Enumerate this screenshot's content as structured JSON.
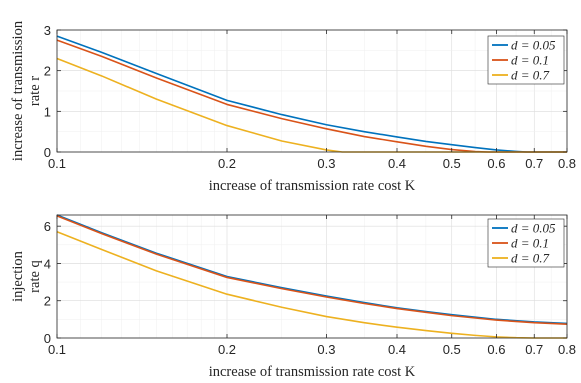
{
  "chart_data": [
    {
      "type": "line",
      "xlabel": "increase of transmission rate cost K",
      "ylabel_lines": [
        "increase of transmission",
        "rate r"
      ],
      "xscale": "log",
      "xlim": [
        0.1,
        0.8
      ],
      "ylim": [
        0,
        3
      ],
      "xticks": [
        0.1,
        0.2,
        0.3,
        0.4,
        0.5,
        0.6,
        0.7,
        0.8
      ],
      "xtick_labels": [
        "0.1",
        "0.2",
        "0.3",
        "0.4",
        "0.5",
        "0.6",
        "0.7",
        "0.8"
      ],
      "yticks": [
        0,
        1,
        2,
        3
      ],
      "ytick_labels": [
        "0",
        "1",
        "2",
        "3"
      ],
      "grid": true,
      "legend_position": "top-right",
      "series": [
        {
          "name": "d = 0.05",
          "color": "#0072BD",
          "x": [
            0.1,
            0.12,
            0.15,
            0.2,
            0.25,
            0.3,
            0.35,
            0.4,
            0.45,
            0.5,
            0.55,
            0.6,
            0.65,
            0.68,
            0.7,
            0.8
          ],
          "y": [
            2.85,
            2.45,
            1.93,
            1.27,
            0.92,
            0.67,
            0.5,
            0.37,
            0.26,
            0.18,
            0.11,
            0.05,
            0.015,
            0.0,
            0.0,
            0.0
          ]
        },
        {
          "name": "d = 0.1",
          "color": "#D95319",
          "x": [
            0.1,
            0.12,
            0.15,
            0.2,
            0.25,
            0.3,
            0.35,
            0.4,
            0.45,
            0.5,
            0.55,
            0.58,
            0.6,
            0.8
          ],
          "y": [
            2.75,
            2.35,
            1.82,
            1.17,
            0.82,
            0.57,
            0.38,
            0.25,
            0.14,
            0.06,
            0.01,
            0.0,
            0.0,
            0.0
          ]
        },
        {
          "name": "d = 0.7",
          "color": "#EDB120",
          "x": [
            0.1,
            0.12,
            0.15,
            0.2,
            0.25,
            0.3,
            0.32,
            0.35,
            0.8
          ],
          "y": [
            2.3,
            1.87,
            1.3,
            0.65,
            0.27,
            0.05,
            0.0,
            0.0,
            0.0
          ]
        }
      ]
    },
    {
      "type": "line",
      "xlabel": "increase of transmission rate cost K",
      "ylabel_lines": [
        "injection",
        "rate q"
      ],
      "xscale": "log",
      "xlim": [
        0.1,
        0.8
      ],
      "ylim": [
        0,
        6.6
      ],
      "xticks": [
        0.1,
        0.2,
        0.3,
        0.4,
        0.5,
        0.6,
        0.7,
        0.8
      ],
      "xtick_labels": [
        "0.1",
        "0.2",
        "0.3",
        "0.4",
        "0.5",
        "0.6",
        "0.7",
        "0.8"
      ],
      "yticks": [
        0,
        2,
        4,
        6
      ],
      "ytick_labels": [
        "0",
        "2",
        "4",
        "6"
      ],
      "grid": true,
      "legend_position": "top-right",
      "series": [
        {
          "name": "d = 0.05",
          "color": "#0072BD",
          "x": [
            0.1,
            0.12,
            0.15,
            0.2,
            0.25,
            0.3,
            0.35,
            0.4,
            0.45,
            0.5,
            0.6,
            0.7,
            0.8
          ],
          "y": [
            6.6,
            5.65,
            4.55,
            3.3,
            2.7,
            2.25,
            1.9,
            1.62,
            1.42,
            1.25,
            1.0,
            0.86,
            0.78
          ]
        },
        {
          "name": "d = 0.1",
          "color": "#D95319",
          "x": [
            0.1,
            0.12,
            0.15,
            0.2,
            0.25,
            0.3,
            0.35,
            0.4,
            0.45,
            0.5,
            0.6,
            0.7,
            0.8
          ],
          "y": [
            6.55,
            5.6,
            4.5,
            3.25,
            2.65,
            2.2,
            1.85,
            1.58,
            1.38,
            1.2,
            0.96,
            0.82,
            0.74
          ]
        },
        {
          "name": "d = 0.7",
          "color": "#EDB120",
          "x": [
            0.1,
            0.12,
            0.15,
            0.2,
            0.25,
            0.3,
            0.35,
            0.4,
            0.45,
            0.5,
            0.55,
            0.6,
            0.65,
            0.7,
            0.8
          ],
          "y": [
            5.7,
            4.75,
            3.6,
            2.35,
            1.65,
            1.15,
            0.82,
            0.58,
            0.4,
            0.25,
            0.14,
            0.06,
            0.015,
            0.0,
            0.0
          ]
        }
      ]
    }
  ]
}
